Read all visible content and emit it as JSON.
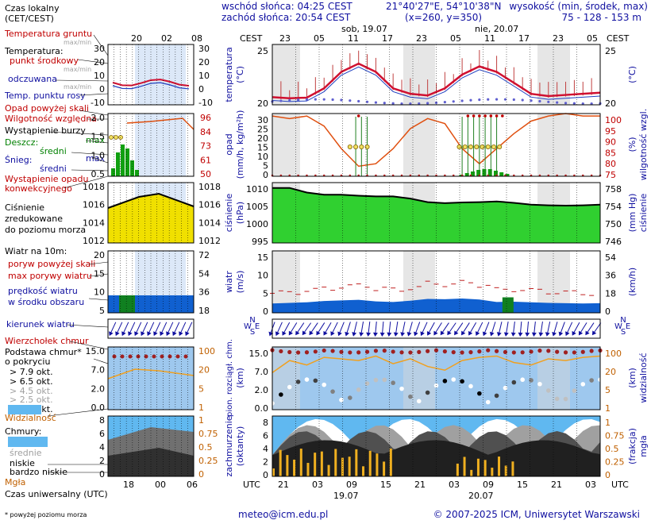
{
  "header": {
    "sunrise": "wschód słońca: 04:25 CEST",
    "sunset": "zachód słońca: 20:54 CEST",
    "coords": "21°40'27\"E, 54°10'38\"N",
    "grid": "(x=260, y=350)",
    "alt_title": "wysokość (min, środek, max)",
    "alt_values": "75 - 128 - 153 m"
  },
  "footer": {
    "note": "* powyżej poziomu morza",
    "email": "meteo@icm.edu.pl",
    "copyright": "© 2007-2025 ICM, Uniwersytet Warszawski"
  },
  "legend": {
    "local_time": "Czas lokalny",
    "local_time_sub": "(CET/CEST)",
    "soil_temp": "Temperatura gruntu",
    "soil_temp_sub": "max/min",
    "temperature": "Temperatura:",
    "mid_point": "punkt środkowy",
    "mid_sub": "max/min",
    "felt": "odczuwana",
    "felt_sub": "max/min",
    "dew": "Temp. punktu rosy",
    "precip_above": "Opad powyżej skali",
    "humidity": "Wilgotność względna",
    "storm": "Wystąpienie burzy",
    "rain": "Deszcz:",
    "rain_max": "max",
    "rain_mean": "średni",
    "snow": "Śnieg:",
    "snow_max": "max",
    "snow_mean": "średni",
    "conv_1": "Wystąpienie opadu",
    "conv_2": "konwekcyjnego",
    "pressure_1": "Ciśnienie",
    "pressure_2": "zredukowane",
    "pressure_3": "do poziomu morza",
    "wind": "Wiatr na 10m:",
    "gust_above": "poryw powyżej skali",
    "gust_max": "max porywy wiatru",
    "wind_speed_1": "prędkość wiatru",
    "wind_speed_2": "w środku obszaru",
    "wind_dir": "kierunek wiatru",
    "storm_top": "Wierzchołek chmur",
    "cloud_base_1": "Podstawa chmur*",
    "cloud_base_2": "o pokryciu",
    "okt_79": "> 7.9 okt.",
    "okt_65": "> 6.5 okt.",
    "okt_45": "> 4.5 okt.",
    "okt_25": "> 2.5 okt.",
    "okt_01": "> 0.1 okt.",
    "visibility": "Widzialność",
    "clouds": "Chmury:",
    "high": "wysokie",
    "medium": "średnie",
    "low": "niskie",
    "very_low": "bardzo niskie",
    "fog": "Mgła",
    "utc_time": "Czas uniwersalny (UTC)"
  },
  "legend_axes": {
    "temp_top": [
      "20",
      "02",
      "08"
    ],
    "utc_bottom": [
      "18",
      "00",
      "06"
    ],
    "temp_ticks": [
      "30",
      "20",
      "10",
      "0",
      "-10"
    ],
    "precip_ticks": [
      "2.0",
      "1.5",
      "1.0",
      "0.5"
    ],
    "hum_ticks": [
      "96",
      "84",
      "73",
      "61",
      "50"
    ],
    "pres_ticks": [
      "1018",
      "1016",
      "1014",
      "1012"
    ],
    "wind_ticks": [
      "20",
      "15",
      "10",
      "5"
    ],
    "windkmh_ticks": [
      "72",
      "54",
      "36",
      "18"
    ],
    "cloud_ticks": [
      "15.0",
      "7.0",
      "2.0",
      "0.0"
    ],
    "vis_ticks": [
      "100",
      "20",
      "5",
      "1"
    ],
    "cover_ticks": [
      "8",
      "6",
      "4",
      "2",
      "0"
    ],
    "frac_ticks": [
      "1",
      "0.75",
      "0.5",
      "0.25",
      "0"
    ]
  },
  "main_axes": {
    "top_prefix": "CEST",
    "bottom_prefix": "UTC",
    "day1": "sob, 19.07",
    "day2": "nie, 20.07",
    "date1": "19.07",
    "date2": "20.07",
    "cest_hours": [
      "23",
      "05",
      "11",
      "17",
      "23",
      "05",
      "11",
      "17",
      "23",
      "05"
    ],
    "utc_hours": [
      "21",
      "03",
      "09",
      "15",
      "21",
      "03",
      "09",
      "15",
      "21",
      "03"
    ],
    "temp_ylabel": "temperatura",
    "temp_unit": "(°C)",
    "temp_ticks": [
      "25",
      "20"
    ],
    "precip_ylabel": "opad",
    "precip_unit": "(mm/h, kg/m²h)",
    "precip_ticks": [
      "30",
      "25",
      "20",
      "15",
      "10",
      "5",
      "0"
    ],
    "hum_ylabel": "wilgotność wzgl.",
    "hum_unit": "(%)",
    "hum_ticks": [
      "100",
      "95",
      "90",
      "85",
      "80",
      "75"
    ],
    "pres_ylabel": "ciśnienie",
    "pres_unit": "(hPa)",
    "pres_ticks": [
      "1010",
      "1005",
      "1000",
      "995"
    ],
    "pres_right_ylabel": "ciśnienie",
    "pres_right_unit": "(mm Hg)",
    "presmm_ticks": [
      "758",
      "754",
      "750",
      "746"
    ],
    "wind_ylabel": "wiatr",
    "wind_unit": "(m/s)",
    "wind_ticks": [
      "15",
      "10",
      "5",
      "0"
    ],
    "windkmh_unit": "(km/h)",
    "windkmh_ticks": [
      "54",
      "36",
      "18",
      "0"
    ],
    "cloud_ylabel_1": "pion. rozciągł. chm.",
    "cloud_unit": "(km)",
    "cloud_ticks": [
      "15.0",
      "7.0",
      "2.0",
      "0.0"
    ],
    "vis_ylabel": "widzialność",
    "vis_unit": "(km)",
    "vis_ticks": [
      "100",
      "20",
      "5",
      "1"
    ],
    "cover_ylabel": "zachmurzenie",
    "cover_unit": "(oktanty)",
    "cover_ticks": [
      "8",
      "6",
      "4",
      "2",
      "0"
    ],
    "fog_ylabel": "mgła",
    "fog_unit": "(frakcja)",
    "fog_ticks": [
      "1",
      "0.75",
      "0.5",
      "0.25",
      "0"
    ],
    "wind_dir_letters": [
      "N",
      "W",
      "E",
      "S"
    ]
  },
  "chart_data": {
    "type": "line",
    "title": "",
    "x_hours_utc": [
      0,
      3,
      6,
      9,
      12,
      15,
      18,
      21,
      24,
      27,
      30,
      33,
      36,
      39,
      42,
      45,
      48,
      51,
      54,
      57
    ],
    "series": [
      {
        "name": "temperatura",
        "values": [
          18.4,
          18.2,
          18.3,
          20,
          23,
          24.5,
          23,
          20,
          19,
          18.7,
          20,
          22.5,
          24,
          23,
          21,
          19,
          18.6,
          18.8,
          19,
          19.2
        ]
      },
      {
        "name": "ciśnienie",
        "values": [
          1010.5,
          1010.5,
          1009.2,
          1008.6,
          1008.6,
          1008.3,
          1008.1,
          1008.1,
          1007.5,
          1006.5,
          1006.2,
          1006.4,
          1006.5,
          1006.7,
          1006.3,
          1005.8,
          1005.6,
          1005.5,
          1005.6,
          1005.8
        ]
      },
      {
        "name": "wilgotność wzgl.",
        "values": [
          99,
          98,
          99,
          95,
          86,
          79,
          80,
          86,
          94,
          98,
          96,
          86,
          80,
          86,
          92,
          97,
          99,
          100,
          99,
          99
        ]
      },
      {
        "name": "wiatr",
        "values": [
          3.0,
          3.2,
          3.4,
          3.8,
          4.0,
          4.2,
          3.7,
          3.5,
          3.9,
          4.5,
          4.4,
          4.6,
          4.3,
          3.5,
          3.6,
          3.4,
          3.2,
          3.1,
          3.0,
          3.1
        ]
      }
    ],
    "ylim_temp": [
      17,
      28
    ],
    "ylim_pres": [
      995,
      1012
    ]
  }
}
